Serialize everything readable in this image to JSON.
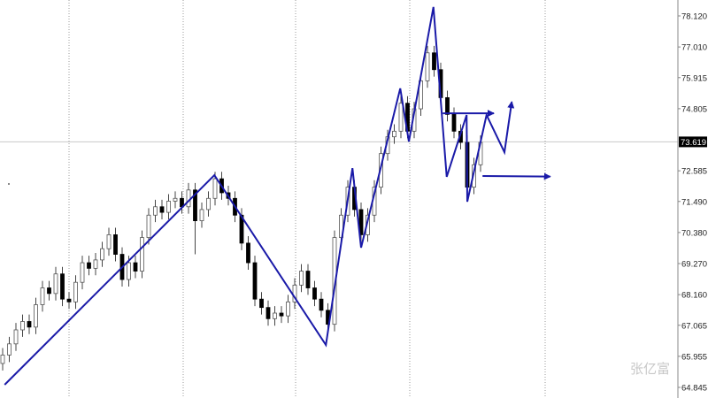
{
  "watermark": "张亿富",
  "colors": {
    "zigzag": "#1a1aa8",
    "grid": "#9a9a9a",
    "bull_fill": "#ffffff",
    "bear_fill": "#000000",
    "price_line": "#c8c8c8",
    "price_label_bg": "#000000"
  },
  "chart_data": {
    "type": "candlestick",
    "title": "",
    "price_axis": {
      "position": "right",
      "ticks": [
        "78.120",
        "77.010",
        "75.915",
        "74.805",
        "72.585",
        "71.490",
        "70.380",
        "69.270",
        "68.160",
        "67.065",
        "65.955",
        "64.845"
      ],
      "ylim": [
        64.845,
        78.12
      ]
    },
    "current_price": "73.619",
    "grid": "vertical dotted",
    "candles": [
      [
        65.7,
        66.25,
        65.45,
        66.0
      ],
      [
        66.0,
        66.65,
        65.75,
        66.4
      ],
      [
        66.4,
        67.15,
        66.15,
        66.9
      ],
      [
        66.9,
        67.45,
        66.65,
        67.2
      ],
      [
        67.2,
        67.45,
        66.75,
        67.0
      ],
      [
        67.0,
        68.05,
        66.75,
        67.8
      ],
      [
        67.8,
        68.65,
        67.55,
        68.4
      ],
      [
        68.4,
        68.65,
        67.95,
        68.2
      ],
      [
        68.2,
        69.15,
        67.95,
        68.9
      ],
      [
        68.9,
        69.15,
        67.75,
        68.0
      ],
      [
        68.0,
        68.25,
        67.65,
        67.9
      ],
      [
        67.9,
        68.85,
        67.65,
        68.6
      ],
      [
        68.6,
        69.55,
        68.35,
        69.3
      ],
      [
        69.3,
        69.55,
        68.85,
        69.1
      ],
      [
        69.1,
        69.65,
        68.85,
        69.4
      ],
      [
        69.4,
        70.05,
        69.15,
        69.8
      ],
      [
        69.8,
        70.55,
        69.55,
        70.3
      ],
      [
        70.3,
        70.55,
        69.35,
        69.6
      ],
      [
        69.6,
        69.85,
        68.45,
        68.7
      ],
      [
        68.7,
        69.55,
        68.45,
        69.3
      ],
      [
        69.3,
        69.55,
        68.75,
        69.0
      ],
      [
        69.0,
        70.45,
        68.75,
        70.2
      ],
      [
        70.2,
        71.25,
        69.95,
        71.0
      ],
      [
        71.0,
        71.55,
        70.75,
        71.3
      ],
      [
        71.3,
        71.55,
        70.85,
        71.1
      ],
      [
        71.1,
        71.75,
        70.85,
        71.5
      ],
      [
        71.5,
        71.85,
        71.25,
        71.6
      ],
      [
        71.6,
        71.85,
        71.05,
        71.3
      ],
      [
        71.3,
        72.15,
        71.05,
        71.9
      ],
      [
        71.9,
        72.15,
        69.6,
        70.8
      ],
      [
        70.8,
        71.45,
        70.55,
        71.2
      ],
      [
        71.2,
        71.85,
        70.95,
        71.6
      ],
      [
        71.6,
        72.55,
        71.35,
        72.3
      ],
      [
        72.3,
        72.55,
        71.55,
        71.8
      ],
      [
        71.8,
        72.05,
        71.35,
        71.6
      ],
      [
        71.6,
        71.85,
        70.75,
        71.0
      ],
      [
        71.0,
        71.25,
        69.75,
        70.0
      ],
      [
        70.0,
        70.25,
        69.05,
        69.3
      ],
      [
        69.3,
        69.55,
        67.75,
        68.0
      ],
      [
        68.0,
        68.25,
        67.45,
        67.7
      ],
      [
        67.7,
        67.95,
        67.05,
        67.3
      ],
      [
        67.3,
        67.75,
        67.05,
        67.5
      ],
      [
        67.5,
        67.75,
        67.15,
        67.4
      ],
      [
        67.4,
        68.15,
        67.15,
        67.9
      ],
      [
        67.9,
        68.75,
        67.65,
        68.5
      ],
      [
        68.5,
        69.25,
        68.25,
        69.0
      ],
      [
        69.0,
        69.25,
        68.15,
        68.4
      ],
      [
        68.4,
        68.65,
        67.75,
        68.0
      ],
      [
        68.0,
        68.25,
        67.35,
        67.6
      ],
      [
        67.6,
        67.85,
        66.85,
        67.1
      ],
      [
        67.1,
        70.45,
        66.85,
        70.2
      ],
      [
        70.2,
        71.25,
        69.95,
        71.0
      ],
      [
        71.0,
        72.25,
        70.75,
        72.0
      ],
      [
        72.0,
        72.25,
        70.95,
        71.2
      ],
      [
        71.2,
        71.45,
        70.05,
        70.3
      ],
      [
        70.3,
        71.25,
        70.05,
        71.0
      ],
      [
        71.0,
        72.25,
        70.75,
        72.0
      ],
      [
        72.0,
        73.45,
        71.75,
        73.2
      ],
      [
        73.2,
        74.05,
        72.95,
        73.8
      ],
      [
        73.8,
        74.25,
        73.55,
        74.0
      ],
      [
        74.0,
        75.25,
        73.75,
        75.0
      ],
      [
        75.0,
        75.25,
        73.75,
        74.0
      ],
      [
        74.0,
        75.05,
        73.75,
        74.8
      ],
      [
        74.8,
        76.05,
        74.55,
        75.8
      ],
      [
        75.8,
        77.05,
        75.55,
        76.8
      ],
      [
        76.8,
        77.05,
        75.95,
        76.2
      ],
      [
        76.2,
        76.45,
        74.95,
        75.2
      ],
      [
        75.2,
        75.45,
        74.35,
        74.6
      ],
      [
        74.6,
        74.85,
        73.75,
        74.0
      ],
      [
        74.0,
        74.25,
        73.35,
        73.6
      ],
      [
        73.6,
        73.85,
        71.75,
        72.0
      ],
      [
        72.0,
        73.05,
        71.75,
        72.8
      ],
      [
        72.8,
        73.85,
        72.55,
        73.6
      ]
    ],
    "zigzag": [
      [
        0.3,
        64.94
      ],
      [
        31.9,
        72.43
      ],
      [
        48.7,
        66.36
      ],
      [
        52.7,
        72.68
      ],
      [
        54.0,
        69.84
      ],
      [
        59.9,
        75.53
      ],
      [
        61.2,
        73.63
      ],
      [
        64.9,
        78.44
      ],
      [
        66.9,
        72.37
      ],
      [
        69.9,
        74.58
      ],
      [
        70.0,
        71.48
      ],
      [
        72.9,
        74.58
      ],
      [
        75.6,
        73.25
      ],
      [
        76.7,
        75.05
      ]
    ],
    "arrows": [
      {
        "from": [
          66.3,
          74.64
        ],
        "to": [
          74.0,
          74.64
        ]
      },
      {
        "from": [
          72.3,
          72.4
        ],
        "to": [
          82.5,
          72.38
        ]
      }
    ]
  }
}
